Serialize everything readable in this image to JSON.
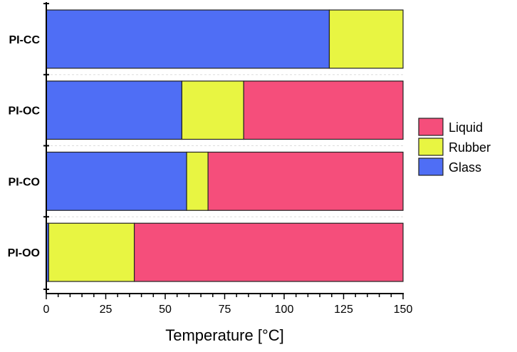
{
  "chart_data": {
    "type": "bar",
    "orientation": "horizontal",
    "stacked": true,
    "title": "",
    "xlabel": "Temperature [°C]",
    "ylabel": "",
    "xlim": [
      0,
      150
    ],
    "xticks": [
      0,
      25,
      50,
      75,
      100,
      125,
      150
    ],
    "categories": [
      "PI-CC",
      "PI-OC",
      "PI-CO",
      "PI-OO"
    ],
    "series": [
      {
        "name": "Glass",
        "color": "#4f6ef5",
        "values": [
          119,
          57,
          59,
          1
        ]
      },
      {
        "name": "Rubber",
        "color": "#e8f542",
        "values": [
          31,
          26,
          9,
          36
        ]
      },
      {
        "name": "Liquid",
        "color": "#f54e7b",
        "values": [
          0,
          67,
          82,
          113
        ]
      }
    ],
    "legend": {
      "placement": "right",
      "order": [
        "Liquid",
        "Rubber",
        "Glass"
      ]
    },
    "grid": false
  }
}
